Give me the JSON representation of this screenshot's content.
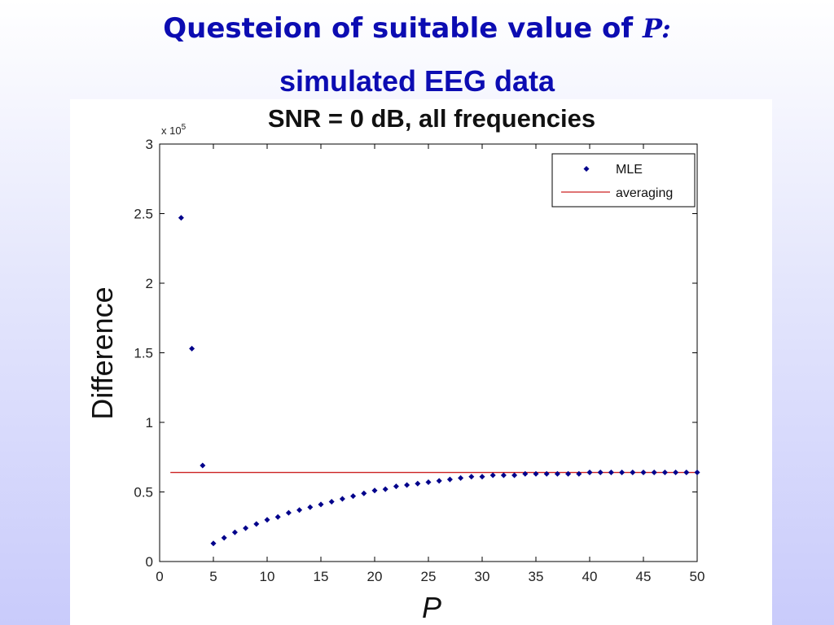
{
  "slide": {
    "title_text": "Questeion of suitable value of ",
    "title_variable": "P:",
    "subtitle": "simulated EEG data"
  },
  "colors": {
    "title": "#0c0cb2",
    "mle": "#00008b",
    "averaging": "#cc2222",
    "axes": "#000000"
  },
  "chart_data": {
    "type": "scatter",
    "title": "SNR = 0 dB, all frequencies",
    "xlabel": "P",
    "ylabel": "Difference",
    "y_exponent_label": "x 10",
    "y_exponent": "5",
    "xlim": [
      0,
      50
    ],
    "ylim": [
      0,
      3
    ],
    "x_ticks": [
      0,
      5,
      10,
      15,
      20,
      25,
      30,
      35,
      40,
      45,
      50
    ],
    "y_ticks": [
      0,
      0.5,
      1,
      1.5,
      2,
      2.5,
      3
    ],
    "y_tick_labels": [
      "0",
      "0.5",
      "1",
      "1.5",
      "2",
      "2.5",
      "3"
    ],
    "grid": false,
    "legend_position": "top-right",
    "series": [
      {
        "name": "MLE",
        "type": "scatter",
        "marker": "diamond",
        "x": [
          2,
          3,
          4,
          5,
          6,
          7,
          8,
          9,
          10,
          11,
          12,
          13,
          14,
          15,
          16,
          17,
          18,
          19,
          20,
          21,
          22,
          23,
          24,
          25,
          26,
          27,
          28,
          29,
          30,
          31,
          32,
          33,
          34,
          35,
          36,
          37,
          38,
          39,
          40,
          41,
          42,
          43,
          44,
          45,
          46,
          47,
          48,
          49,
          50
        ],
        "y": [
          2.47,
          1.53,
          0.69,
          0.13,
          0.17,
          0.21,
          0.24,
          0.27,
          0.3,
          0.32,
          0.35,
          0.37,
          0.39,
          0.41,
          0.43,
          0.45,
          0.47,
          0.49,
          0.51,
          0.52,
          0.54,
          0.55,
          0.56,
          0.57,
          0.58,
          0.59,
          0.6,
          0.61,
          0.61,
          0.62,
          0.62,
          0.62,
          0.63,
          0.63,
          0.63,
          0.63,
          0.63,
          0.63,
          0.64,
          0.64,
          0.64,
          0.64,
          0.64,
          0.64,
          0.64,
          0.64,
          0.64,
          0.64,
          0.64
        ]
      },
      {
        "name": "averaging",
        "type": "line",
        "x": [
          1,
          50
        ],
        "y": [
          0.64,
          0.64
        ]
      }
    ]
  }
}
